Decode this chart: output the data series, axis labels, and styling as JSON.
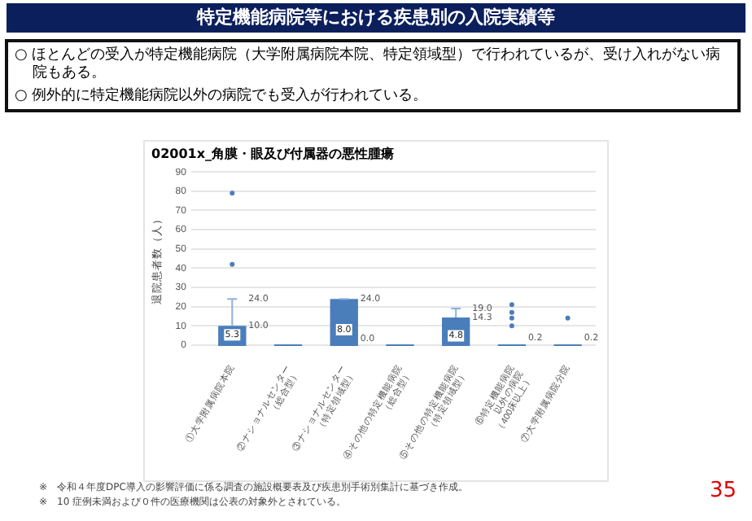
{
  "chart_data": {
    "type": "box",
    "title": "特定機能病院等における疾患別の入院実績等",
    "subtitle": "02001x_角膜・眼及び付属器の悪性腫瘍",
    "ylabel": "退院患者数（人）",
    "categories": [
      "①大学附属病院本院",
      "②ナショナルセンター\n（総合型）",
      "③ナショナルセンター\n（特定領域型）",
      "④その他の特定機能病院\n（総合型）",
      "⑤その他の特定機能病院\n（特定領域型）",
      "⑥特定機能病院\n以外の病院\n（400床以上）",
      "⑦大学附属病院分院"
    ],
    "color": "#4a7ebb",
    "boxes": [
      {
        "low": 0,
        "q1": 0,
        "median": 0,
        "q3": 10,
        "high": 24,
        "mean": 5.3,
        "outliers": [
          42,
          79
        ]
      },
      {
        "low": 0,
        "q1": 0,
        "median": 0,
        "q3": 0,
        "high": 0,
        "mean": 0
      },
      {
        "low": 0,
        "q1": 0,
        "median": 0,
        "q3": 24,
        "high": 24,
        "mean": 8
      },
      {
        "low": 0,
        "q1": 0,
        "median": 0,
        "q3": 0,
        "high": 0,
        "mean": 0
      },
      {
        "low": 0,
        "q1": 0,
        "median": 0,
        "q3": 14.3,
        "high": 19,
        "mean": 4.8
      },
      {
        "low": 0,
        "q1": 0,
        "median": 0,
        "q3": 0,
        "high": 0,
        "mean": 0.2,
        "outliers": [
          10,
          14,
          17,
          21
        ]
      },
      {
        "low": 0,
        "q1": 0,
        "median": 0,
        "q3": 0,
        "high": 0,
        "mean": 0.2,
        "outliers": [
          14
        ]
      }
    ],
    "ylim": [
      0,
      90
    ],
    "yticks": [
      0,
      10,
      20,
      30,
      40,
      50,
      60,
      70,
      80,
      90
    ],
    "grid": "y",
    "legend": false,
    "annotations": [
      "○ ほとんどの受入が特定機能病院（大学附属病院本院、特定領域型）で行われているが、受け入れがない病院もある。",
      "○ 例外的に特定機能病院以外の病院でも受入が行われている。",
      "※　令和４年度DPC導入の影響評価に係る調査の施設概要表及び疾患別手術別集計に基づき作成。",
      "※　10 症例未満および０件の医療機関は公表の対象外とされている。",
      "35",
      {
        "text": "24.0",
        "x": "①大学附属病院本院",
        "y": 24
      },
      {
        "text": "10.0",
        "x": "①大学附属病院本院",
        "y": 10
      },
      {
        "text": "5.3",
        "x": "①大学附属病院本院",
        "y": 5.3
      },
      {
        "text": "24.0",
        "x": "③ナショナルセンター\n（特定領域型）",
        "y": 24
      },
      {
        "text": "8.0",
        "x": "③ナショナルセンター\n（特定領域型）",
        "y": 8
      },
      {
        "text": "0.0",
        "x": "③ナショナルセンター\n（特定領域型）",
        "y": 0
      },
      {
        "text": "19.0",
        "x": "⑤その他の特定機能病院\n（特定領域型）",
        "y": 19
      },
      {
        "text": "14.3",
        "x": "⑤その他の特定機能病院\n（特定領域型）",
        "y": 14.3
      },
      {
        "text": "4.8",
        "x": "⑤その他の特定機能病院\n（特定領域型）",
        "y": 4.8
      },
      {
        "text": "0.2",
        "x": "⑥特定機能病院\n以外の病院\n（400床以上）",
        "y": 0.2
      },
      {
        "text": "0.2",
        "x": "⑦大学附属病院分院",
        "y": 0.2
      }
    ]
  }
}
